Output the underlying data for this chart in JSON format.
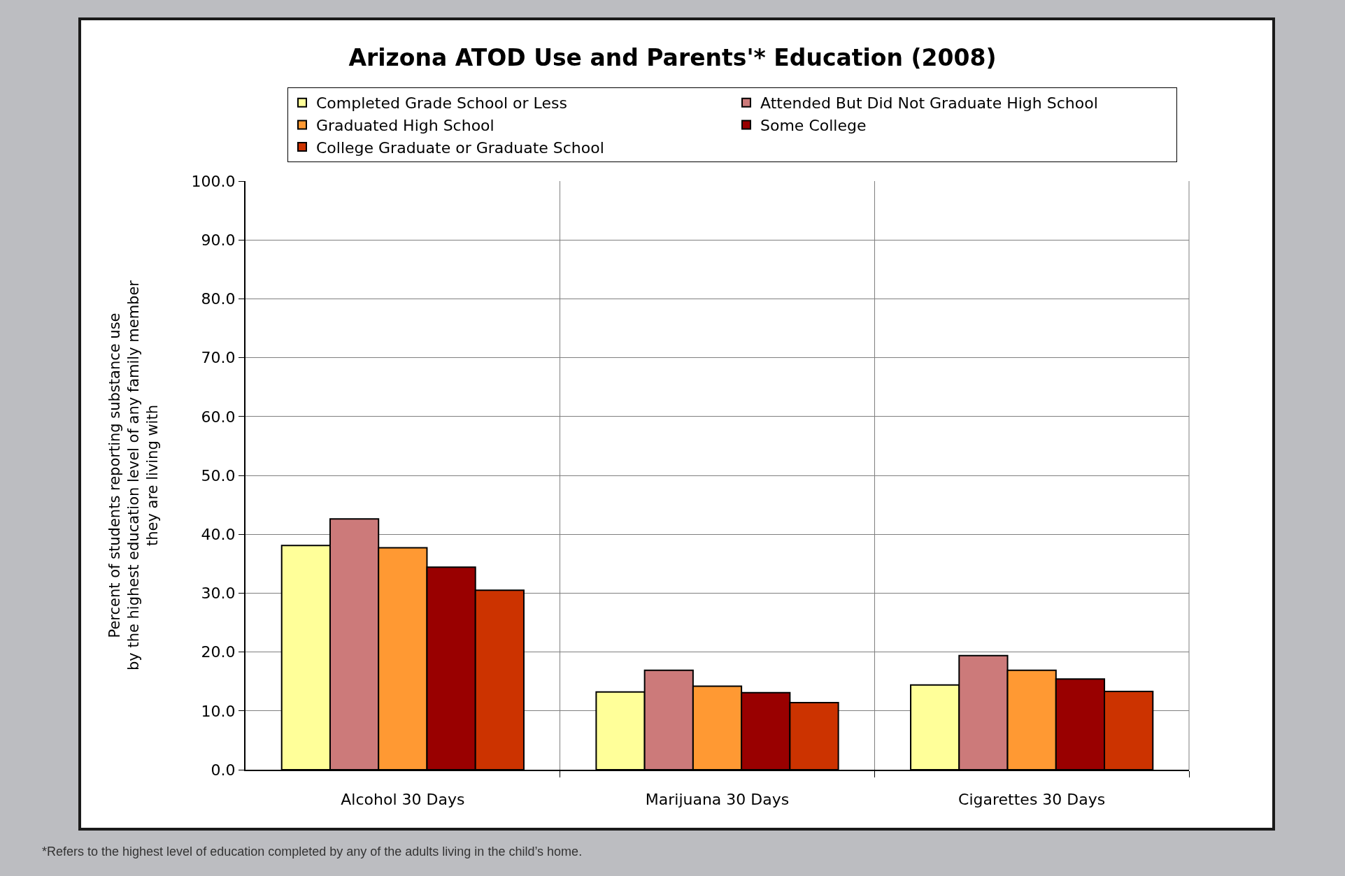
{
  "chart_data": {
    "type": "bar",
    "title": "Arizona ATOD Use and Parents'* Education (2008)",
    "ylabel": "Percent of students reporting substance use\nby the highest education level of any family member\nthey are living with",
    "annotations": [
      "*Refers to the highest level of education completed by any of the adults living in the child’s home."
    ],
    "categories": [
      "Alcohol 30 Days",
      "Marijuana 30 Days",
      "Cigarettes 30 Days"
    ],
    "series": [
      {
        "name": "Completed Grade School or Less",
        "color": "#ffff99",
        "values": [
          38.1,
          13.2,
          14.4
        ]
      },
      {
        "name": "Attended But Did Not Graduate High School",
        "color": "#cc7a7a",
        "values": [
          42.6,
          16.9,
          19.4
        ]
      },
      {
        "name": "Graduated High School",
        "color": "#ff9933",
        "values": [
          37.7,
          14.2,
          16.9
        ]
      },
      {
        "name": "Some College",
        "color": "#990000",
        "values": [
          34.4,
          13.1,
          15.4
        ]
      },
      {
        "name": "College Graduate or Graduate School",
        "color": "#cc3300",
        "values": [
          30.5,
          11.4,
          13.3
        ]
      }
    ],
    "ylim": [
      0,
      100
    ],
    "yticks": [
      {
        "value": 0,
        "label": "0.0"
      },
      {
        "value": 10,
        "label": "10.0"
      },
      {
        "value": 20,
        "label": "20.0"
      },
      {
        "value": 30,
        "label": "30.0"
      },
      {
        "value": 40,
        "label": "40.0"
      },
      {
        "value": 50,
        "label": "50.0"
      },
      {
        "value": 60,
        "label": "60.0"
      },
      {
        "value": 70,
        "label": "70.0"
      },
      {
        "value": 80,
        "label": "80.0"
      },
      {
        "value": 90,
        "label": "90.0"
      },
      {
        "value": 100,
        "label": "100.0"
      }
    ],
    "grid": true,
    "legend": "top"
  }
}
